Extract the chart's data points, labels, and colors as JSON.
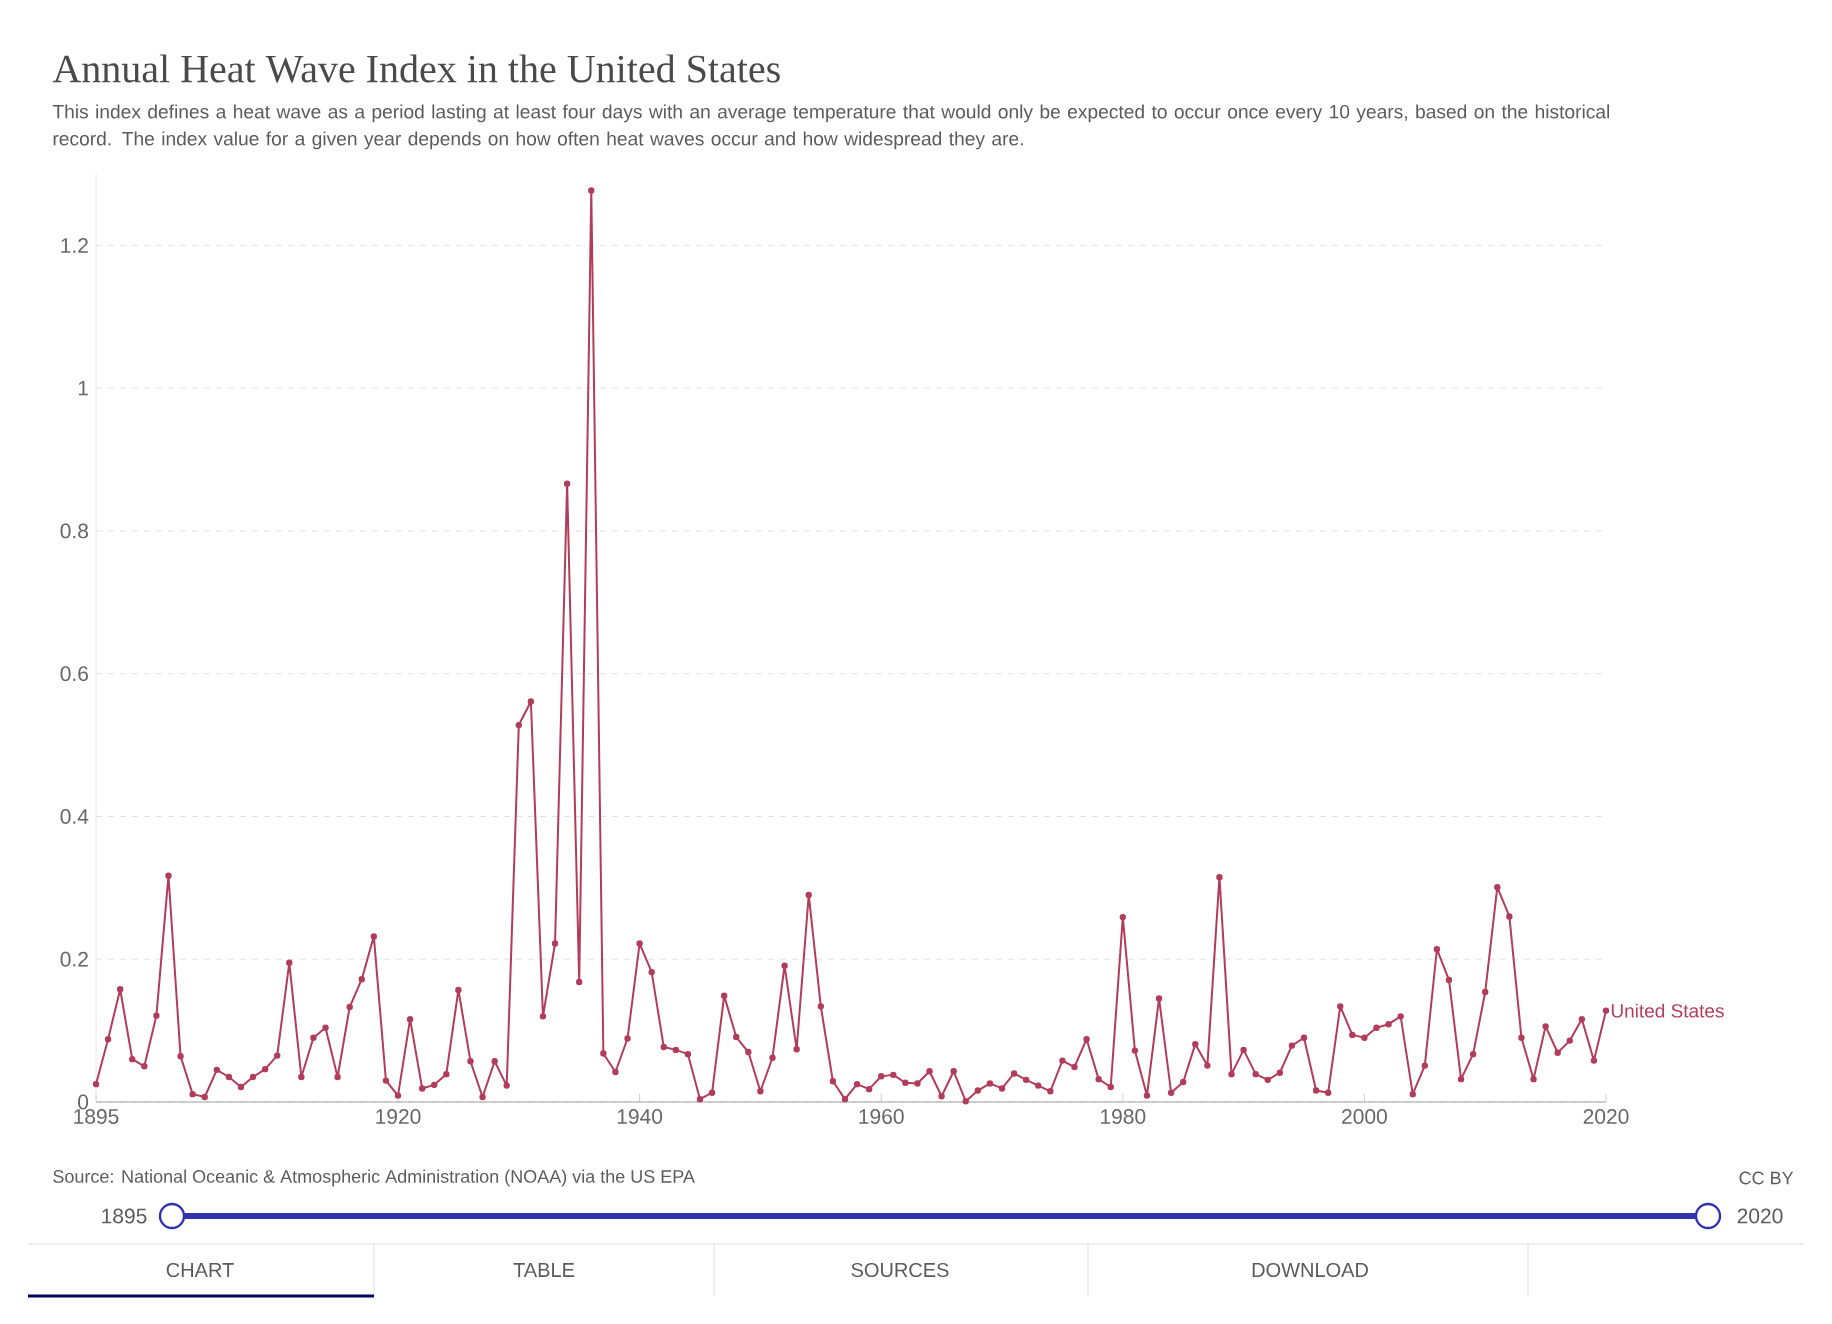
{
  "chart_data": {
    "type": "line",
    "title": "Annual Heat Wave Index in the United States",
    "subtitle": "This index defines a heat wave as a period lasting at least four days with an average temperature that would only be expected to occur once every 10 years, based on the historical record. The index value for a given year depends on how often heat waves occur and how widespread they are.",
    "x": [
      1895,
      1896,
      1897,
      1898,
      1899,
      1900,
      1901,
      1902,
      1903,
      1904,
      1905,
      1906,
      1907,
      1908,
      1909,
      1910,
      1911,
      1912,
      1913,
      1914,
      1915,
      1916,
      1917,
      1918,
      1919,
      1920,
      1921,
      1922,
      1923,
      1924,
      1925,
      1926,
      1927,
      1928,
      1929,
      1930,
      1931,
      1932,
      1933,
      1934,
      1935,
      1936,
      1937,
      1938,
      1939,
      1940,
      1941,
      1942,
      1943,
      1944,
      1945,
      1946,
      1947,
      1948,
      1949,
      1950,
      1951,
      1952,
      1953,
      1954,
      1955,
      1956,
      1957,
      1958,
      1959,
      1960,
      1961,
      1962,
      1963,
      1964,
      1965,
      1966,
      1967,
      1968,
      1969,
      1970,
      1971,
      1972,
      1973,
      1974,
      1975,
      1976,
      1977,
      1978,
      1979,
      1980,
      1981,
      1982,
      1983,
      1984,
      1985,
      1986,
      1987,
      1988,
      1989,
      1990,
      1991,
      1992,
      1993,
      1994,
      1995,
      1996,
      1997,
      1998,
      1999,
      2000,
      2001,
      2002,
      2003,
      2004,
      2005,
      2006,
      2007,
      2008,
      2009,
      2010,
      2011,
      2012,
      2013,
      2014,
      2015,
      2016,
      2017,
      2018,
      2019,
      2020
    ],
    "series": [
      {
        "name": "United States",
        "color": "#b13d5a",
        "values": [
          0.025,
          0.088,
          0.158,
          0.06,
          0.05,
          0.121,
          0.317,
          0.064,
          0.011,
          0.007,
          0.045,
          0.035,
          0.021,
          0.035,
          0.046,
          0.065,
          0.195,
          0.035,
          0.09,
          0.104,
          0.035,
          0.133,
          0.172,
          0.232,
          0.03,
          0.009,
          0.116,
          0.019,
          0.024,
          0.039,
          0.157,
          0.057,
          0.007,
          0.057,
          0.023,
          0.528,
          0.561,
          0.12,
          0.222,
          0.866,
          0.168,
          1.277,
          0.068,
          0.042,
          0.089,
          0.222,
          0.182,
          0.077,
          0.073,
          0.067,
          0.004,
          0.013,
          0.149,
          0.091,
          0.07,
          0.015,
          0.062,
          0.191,
          0.074,
          0.29,
          0.134,
          0.029,
          0.004,
          0.025,
          0.018,
          0.036,
          0.038,
          0.027,
          0.026,
          0.043,
          0.008,
          0.043,
          0.001,
          0.016,
          0.026,
          0.019,
          0.04,
          0.031,
          0.023,
          0.015,
          0.058,
          0.049,
          0.088,
          0.032,
          0.021,
          0.259,
          0.072,
          0.009,
          0.145,
          0.013,
          0.028,
          0.081,
          0.051,
          0.315,
          0.039,
          0.073,
          0.039,
          0.031,
          0.041,
          0.079,
          0.09,
          0.016,
          0.013,
          0.134,
          0.094,
          0.09,
          0.104,
          0.109,
          0.12,
          0.011,
          0.051,
          0.214,
          0.171,
          0.032,
          0.067,
          0.154,
          0.301,
          0.26,
          0.09,
          0.032,
          0.106,
          0.069,
          0.086,
          0.116,
          0.058,
          0.128
        ]
      }
    ],
    "xlim": [
      1895,
      2020
    ],
    "xticks": [
      1895,
      1920,
      1940,
      1960,
      1980,
      2000,
      2020
    ],
    "ylim": [
      0,
      1.3
    ],
    "yticks": [
      0,
      0.2,
      0.4,
      0.6,
      0.8,
      1,
      1.2
    ],
    "grid": "y",
    "marker": "circle",
    "line_style": "solid",
    "annotations": [
      "Source: National Oceanic & Atmospheric Administration (NOAA) via the US EPA",
      "CC BY",
      "1895",
      "2020",
      "CHART",
      "TABLE",
      "SOURCES",
      "DOWNLOAD"
    ]
  }
}
